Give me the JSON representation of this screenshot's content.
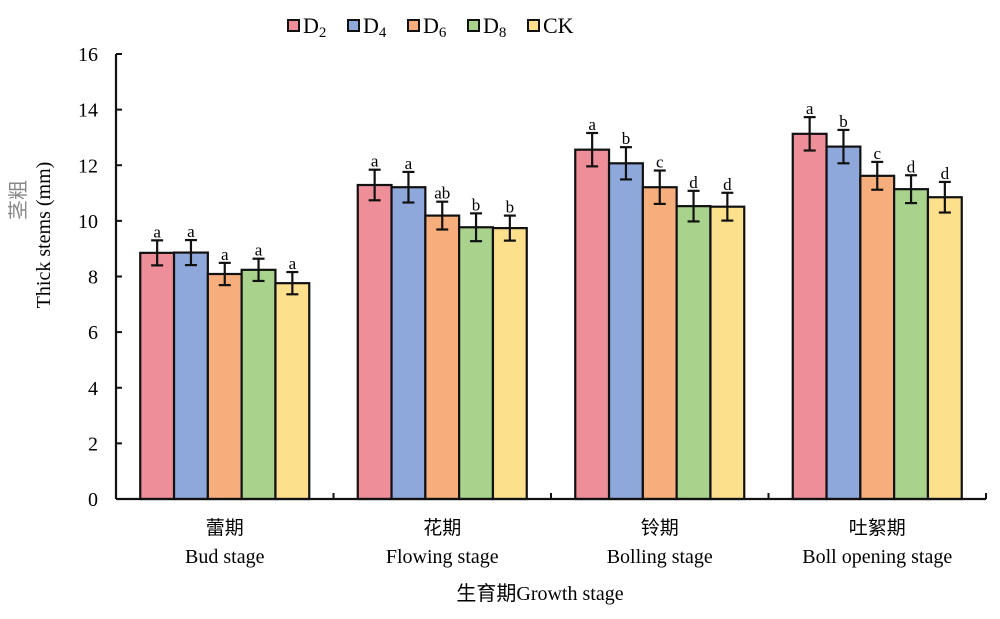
{
  "chart_data": {
    "type": "bar",
    "title": "",
    "xlabel": "生育期Growth stage",
    "ylabel_cn": "茎粗",
    "ylabel": "Thick stems (mm)",
    "ylim": [
      0,
      16
    ],
    "yticks": [
      0,
      2,
      4,
      6,
      8,
      10,
      12,
      14,
      16
    ],
    "grid": false,
    "legend_position": "top-center",
    "categories": [
      {
        "cn": "蕾期",
        "en": "Bud stage"
      },
      {
        "cn": "花期",
        "en": "Flowing stage"
      },
      {
        "cn": "铃期",
        "en": "Bolling  stage"
      },
      {
        "cn": "吐絮期",
        "en": "Boll opening stage"
      }
    ],
    "series": [
      {
        "name": "D2",
        "label_main": "D",
        "label_sub": "2",
        "color": "#ED8E99",
        "values": [
          8.85,
          11.29,
          12.56,
          13.13
        ],
        "errors": [
          0.45,
          0.55,
          0.6,
          0.6
        ],
        "letters": [
          "a",
          "a",
          "a",
          "a"
        ]
      },
      {
        "name": "D4",
        "label_main": "D",
        "label_sub": "4",
        "color": "#8FA8DC",
        "values": [
          8.86,
          11.21,
          12.07,
          12.67
        ],
        "errors": [
          0.45,
          0.55,
          0.58,
          0.6
        ],
        "letters": [
          "a",
          "a",
          "b",
          "b"
        ]
      },
      {
        "name": "D6",
        "label_main": "D",
        "label_sub": "6",
        "color": "#F5AE7C",
        "values": [
          8.09,
          10.19,
          11.21,
          11.62
        ],
        "errors": [
          0.4,
          0.5,
          0.6,
          0.5
        ],
        "letters": [
          "a",
          "ab",
          "c",
          "c"
        ]
      },
      {
        "name": "D8",
        "label_main": "D",
        "label_sub": "8",
        "color": "#A9D38D",
        "values": [
          8.24,
          9.77,
          10.53,
          11.14
        ],
        "errors": [
          0.4,
          0.5,
          0.55,
          0.5
        ],
        "letters": [
          "a",
          "b",
          "d",
          "d"
        ]
      },
      {
        "name": "CK",
        "label_main": "CK",
        "label_sub": "",
        "color": "#FDE08C",
        "values": [
          7.76,
          9.74,
          10.51,
          10.85
        ],
        "errors": [
          0.4,
          0.45,
          0.5,
          0.55
        ],
        "letters": [
          "a",
          "b",
          "d",
          "d"
        ]
      }
    ]
  }
}
